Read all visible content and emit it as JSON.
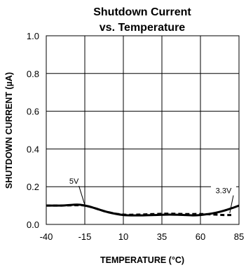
{
  "chart_data": {
    "type": "line",
    "title": "Shutdown Current",
    "subtitle": "vs. Temperature",
    "xlabel": "TEMPERATURE (°C)",
    "ylabel": "SHUTDOWN CURRENT (µA)",
    "xlim": [
      -40,
      85
    ],
    "ylim": [
      0.0,
      1.0
    ],
    "xticks": [
      -40,
      -15,
      10,
      35,
      60,
      85
    ],
    "xtick_labels": [
      "-40",
      "-15",
      "10",
      "35",
      "60",
      "85"
    ],
    "yticks": [
      0.0,
      0.2,
      0.4,
      0.6,
      0.8,
      1.0
    ],
    "ytick_labels": [
      "0.0",
      "0.2",
      "0.4",
      "0.6",
      "0.8",
      "1.0"
    ],
    "grid": true,
    "series": [
      {
        "name": "5V",
        "style": "solid",
        "color": "#000000",
        "x": [
          -40,
          -30,
          -20,
          -15,
          -10,
          0,
          10,
          20,
          30,
          40,
          50,
          55,
          60,
          65,
          70,
          75,
          80,
          85
        ],
        "y": [
          0.1,
          0.1,
          0.105,
          0.1,
          0.09,
          0.065,
          0.05,
          0.048,
          0.05,
          0.052,
          0.05,
          0.048,
          0.05,
          0.055,
          0.062,
          0.072,
          0.085,
          0.1
        ]
      },
      {
        "name": "3.3V",
        "style": "dashed",
        "color": "#000000",
        "x": [
          -40,
          -30,
          -20,
          -15,
          -10,
          0,
          10,
          20,
          30,
          40,
          50,
          60,
          70,
          75,
          80
        ],
        "y": [
          0.1,
          0.1,
          0.102,
          0.1,
          0.09,
          0.065,
          0.052,
          0.052,
          0.055,
          0.057,
          0.055,
          0.055,
          0.052,
          0.05,
          0.05
        ]
      }
    ],
    "annotations": [
      {
        "text": "5V",
        "x": -22,
        "y": 0.215,
        "arrow_to": [
          -15,
          0.103
        ]
      },
      {
        "text": "3.3V",
        "x": 75,
        "y": 0.165,
        "arrow_to": [
          79,
          0.06
        ]
      }
    ]
  }
}
